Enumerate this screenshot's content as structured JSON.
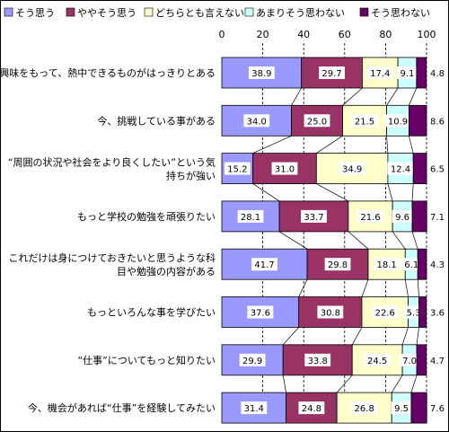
{
  "chart_data": {
    "type": "bar",
    "orientation": "horizontal",
    "stacked": true,
    "percent": true,
    "xlim": [
      0,
      100
    ],
    "xticks": [
      "0",
      "20",
      "40",
      "60",
      "80",
      "100"
    ],
    "grid": true,
    "legend_position": "top",
    "categories": [
      [
        "興味をもって、熱中できるものがはっきりとある"
      ],
      [
        "今、挑戦している事がある"
      ],
      [
        "“周囲の状況や社会をより良くしたい”という気",
        "持ちが強い"
      ],
      [
        "もっと学校の勉強を頑張りたい"
      ],
      [
        "これだけは身につけておきたいと思うような科",
        "目や勉強の内容がある"
      ],
      [
        "もっといろんな事を学びたい"
      ],
      [
        "“仕事”についてもっと知りたい"
      ],
      [
        "今、機会があれば“仕事”を経験してみたい"
      ]
    ],
    "series": [
      {
        "name": "そう思う",
        "color": "#9999ff",
        "values": [
          38.9,
          34.0,
          15.2,
          28.1,
          41.7,
          37.6,
          29.9,
          31.4
        ]
      },
      {
        "name": "ややそう思う",
        "color": "#993366",
        "values": [
          29.7,
          25.0,
          31.0,
          33.7,
          29.8,
          30.8,
          33.8,
          24.8
        ]
      },
      {
        "name": "どちらとも言えない",
        "color": "#ffffcc",
        "values": [
          17.4,
          21.5,
          34.9,
          21.6,
          18.1,
          22.6,
          24.5,
          26.8
        ]
      },
      {
        "name": "あまりそう思わない",
        "color": "#ccffff",
        "values": [
          9.1,
          10.9,
          12.4,
          9.6,
          6.1,
          5.3,
          7.0,
          9.5
        ]
      },
      {
        "name": "そう思わない",
        "color": "#660066",
        "values": [
          4.8,
          8.6,
          6.5,
          7.1,
          4.3,
          3.6,
          4.7,
          7.6
        ]
      }
    ]
  }
}
